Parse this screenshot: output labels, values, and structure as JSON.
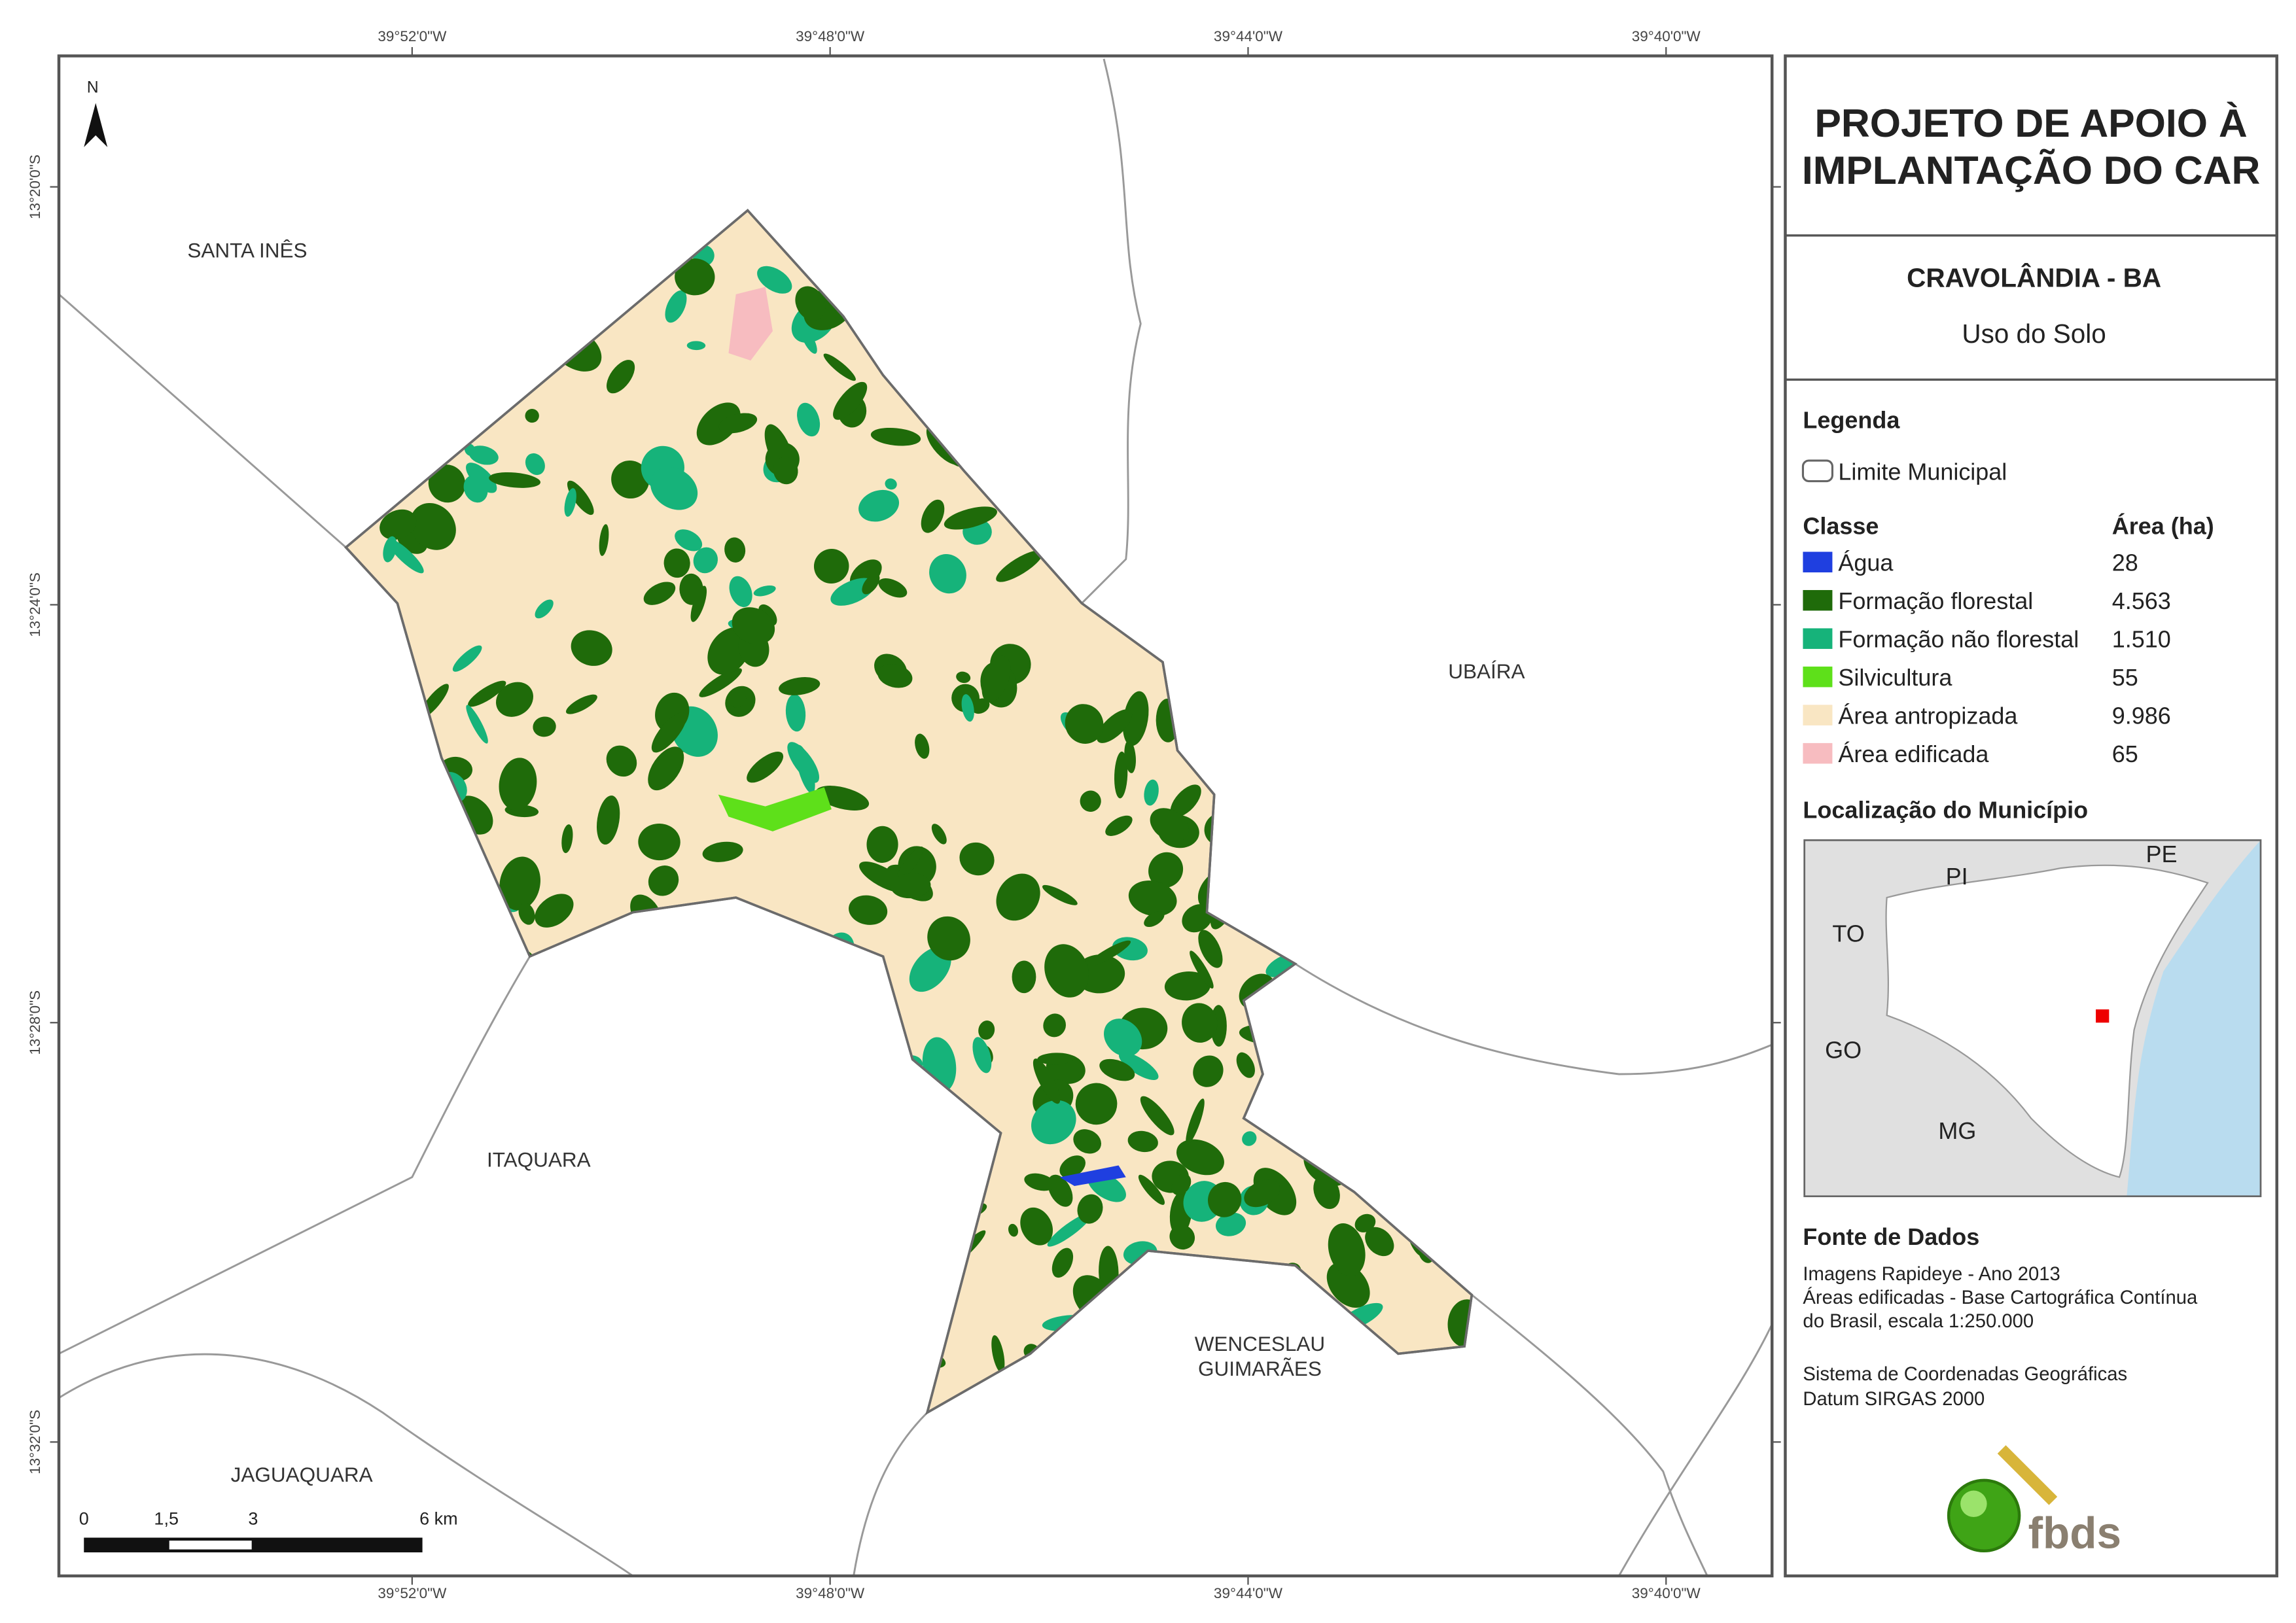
{
  "header": {
    "title_lines": [
      "PROJETO DE APOIO À",
      "IMPLANTAÇÃO DO CAR"
    ],
    "municipality": "CRAVOLÂNDIA - BA",
    "subtitle": "Uso do Solo"
  },
  "legend": {
    "title": "Legenda",
    "boundary": "Limite Municipal",
    "class_header": "Classe",
    "area_header": "Área (ha)",
    "classes": [
      {
        "name": "Água",
        "area": "28",
        "color": "#1f3fe0"
      },
      {
        "name": "Formação florestal",
        "area": "4.563",
        "color": "#1f6b0a"
      },
      {
        "name": "Formação não florestal",
        "area": "1.510",
        "color": "#16b37a"
      },
      {
        "name": "Silvicultura",
        "area": "55",
        "color": "#5ee01a"
      },
      {
        "name": "Área antropizada",
        "area": "9.986",
        "color": "#f9e6c3"
      },
      {
        "name": "Área edificada",
        "area": "65",
        "color": "#f7bcc0"
      }
    ]
  },
  "location": {
    "title": "Localização do Município",
    "states": [
      "PI",
      "PE",
      "TO",
      "GO",
      "MG"
    ]
  },
  "source": {
    "title": "Fonte de Dados",
    "lines": [
      "Imagens Rapideye - Ano 2013",
      "Áreas edificadas - Base Cartográfica Contínua",
      "do Brasil, escala 1:250.000",
      "Sistema de Coordenadas Geográficas",
      "Datum SIRGAS 2000"
    ]
  },
  "map": {
    "north": "N",
    "neighbors": [
      "SANTA INÊS",
      "UBAÍRA",
      "ITAQUARA",
      "WENCESLAU",
      "GUIMARÃES",
      "JAGUAQUARA"
    ],
    "lon_ticks": [
      "39°52'0\"W",
      "39°48'0\"W",
      "39°44'0\"W",
      "39°40'0\"W"
    ],
    "lat_ticks": [
      "13°20'0\"S",
      "13°24'0\"S",
      "13°28'0\"S",
      "13°32'0\"S"
    ],
    "scale_labels": [
      "0",
      "1,5",
      "3",
      "6 km"
    ]
  },
  "logo": "fbds"
}
